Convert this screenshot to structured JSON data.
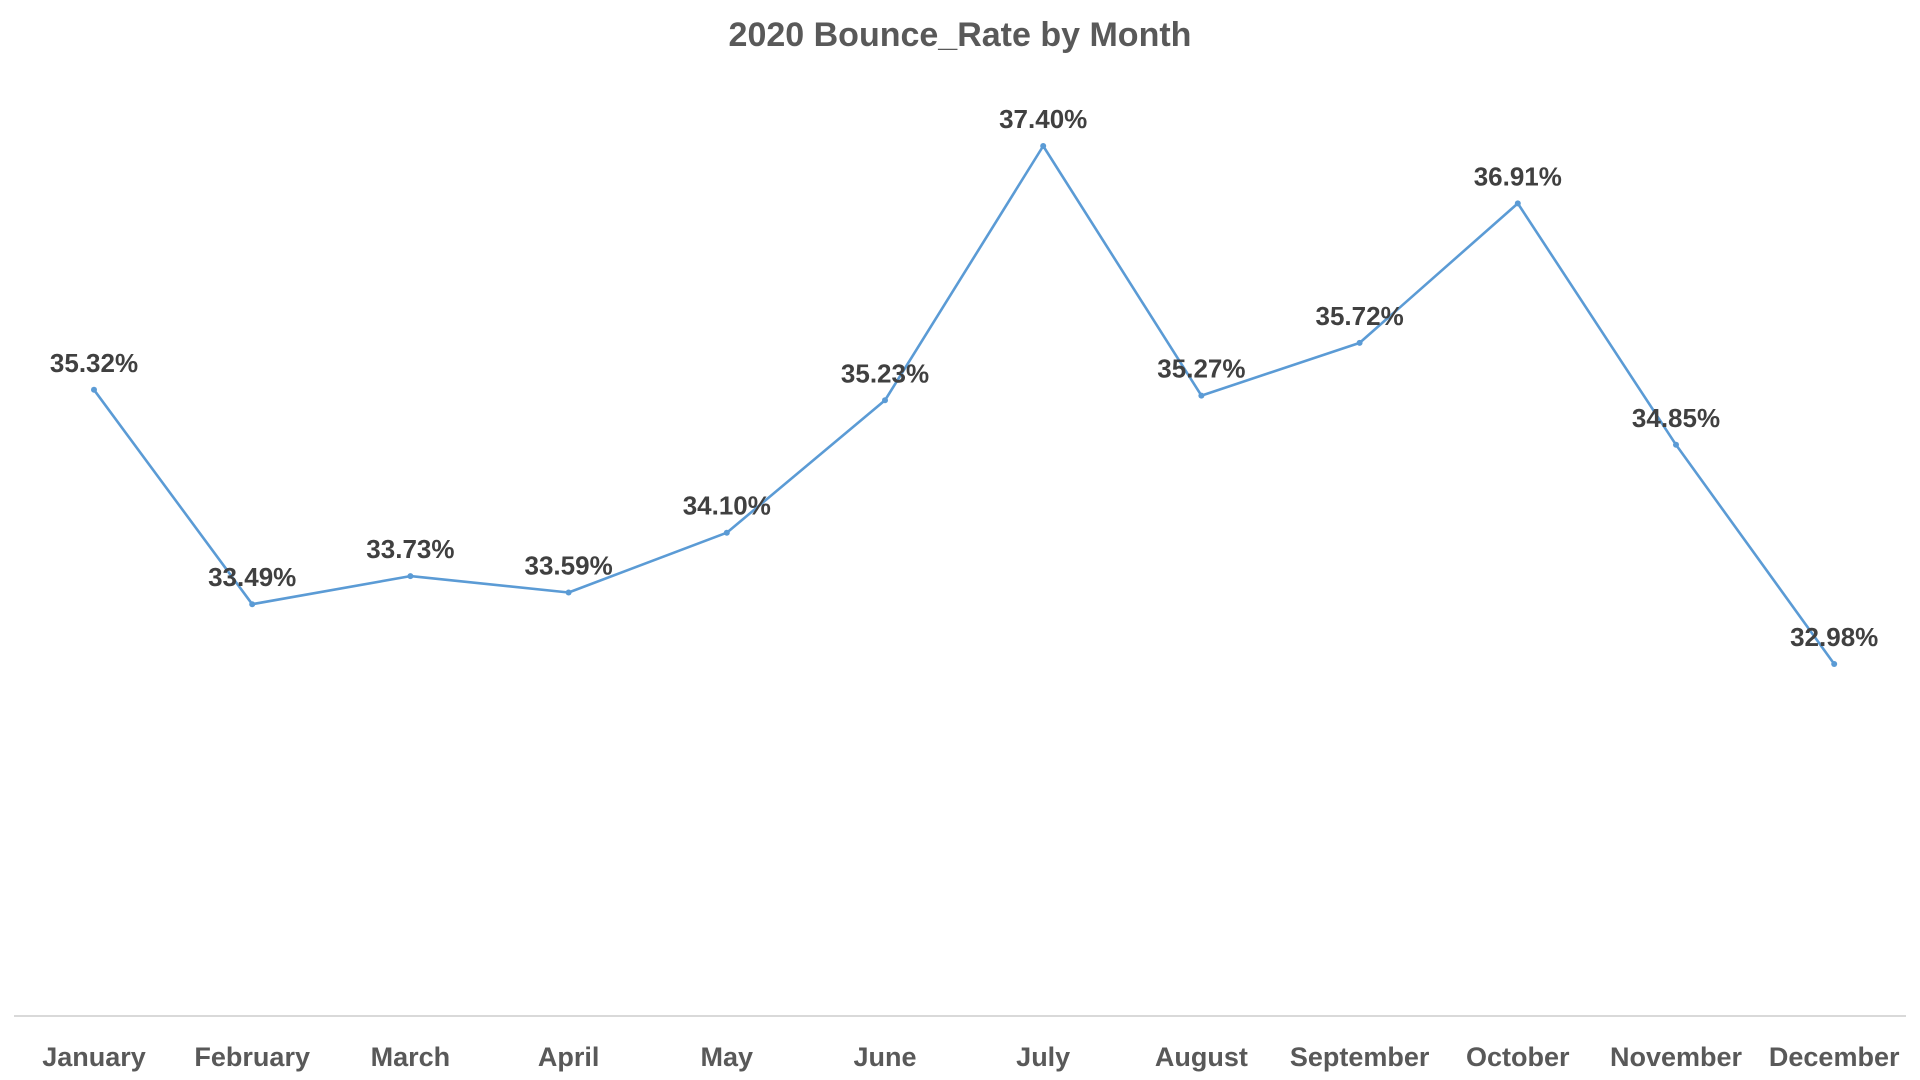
{
  "chart_data": {
    "type": "line",
    "title": "2020 Bounce_Rate by Month",
    "xlabel": "",
    "ylabel": "",
    "categories": [
      "January",
      "February",
      "March",
      "April",
      "May",
      "June",
      "July",
      "August",
      "September",
      "October",
      "November",
      "December"
    ],
    "series": [
      {
        "values": [
          35.32,
          33.49,
          33.73,
          33.59,
          34.1,
          35.23,
          37.4,
          35.27,
          35.72,
          36.91,
          34.85,
          32.98
        ],
        "labels": [
          "35.32%",
          "33.49%",
          "33.73%",
          "33.59%",
          "34.10%",
          "35.23%",
          "37.40%",
          "35.27%",
          "35.72%",
          "36.91%",
          "34.85%",
          "32.98%"
        ],
        "color": "#5B9BD5"
      }
    ],
    "value_format": "percent",
    "ylim": [
      29.5,
      38
    ],
    "grid": false,
    "legend": "none",
    "axis_line_color": "#D9D9D9"
  }
}
